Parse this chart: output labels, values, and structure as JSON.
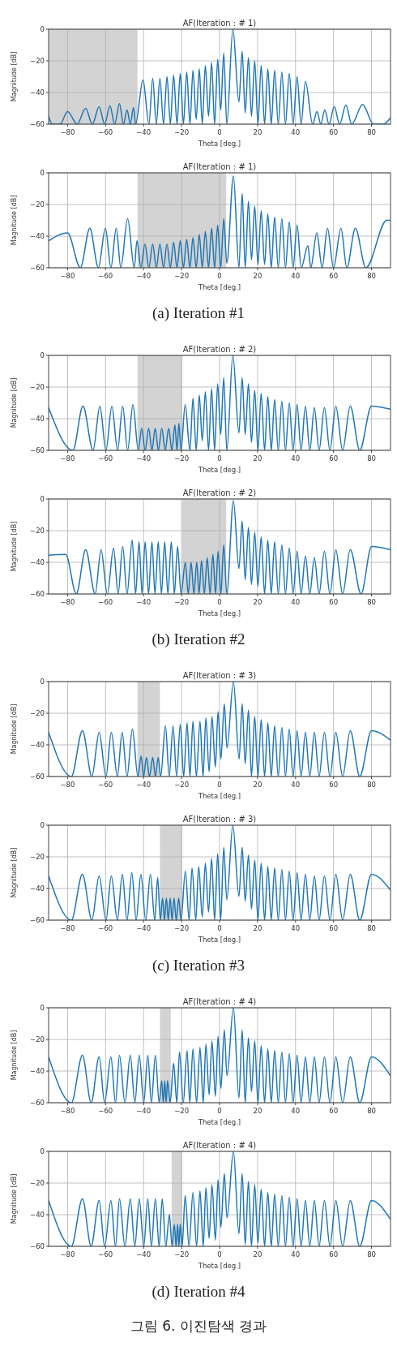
{
  "chart_data": [
    {
      "type": "line",
      "title": "AF(Iteration : # 1)",
      "xlabel": "Theta [deg.]",
      "ylabel": "Magnitude [dB]",
      "xlim": [
        -90,
        90
      ],
      "ylim": [
        -60,
        0
      ],
      "xticks": [
        -80,
        -60,
        -40,
        -20,
        0,
        20,
        40,
        60,
        80
      ],
      "yticks": [
        -60,
        -40,
        -20,
        0
      ],
      "grid": true,
      "bands": [
        {
          "axis": "x",
          "from": -90,
          "to": -43.2,
          "color": "#d3d3d3"
        }
      ],
      "series": [
        {
          "color": "#1f77b4",
          "x": [
            -90,
            -88,
            -84,
            -80,
            -75,
            -70.5,
            -67,
            -63.4,
            -60.5,
            -57.7,
            -55.2,
            -52.7,
            -50.6,
            -48.7,
            -47,
            -45.3,
            -44.2,
            -40.3,
            -37.2,
            -35.2,
            -33.3,
            -31.4,
            -29.5,
            -27.7,
            -25.9,
            -24.2,
            -22.4,
            -20.7,
            -19,
            -17.3,
            -15.6,
            -14,
            -12.3,
            -10.7,
            -9.1,
            -7.5,
            -5.8,
            -4.2,
            -2.6,
            -1,
            0.6,
            2.2,
            3.8,
            7,
            10.2,
            11.9,
            13.5,
            15.2,
            16.8,
            18.5,
            20.2,
            21.9,
            23.7,
            25.4,
            27.2,
            29,
            30.9,
            32.8,
            34.7,
            36.7,
            38.7,
            40.8,
            42.9,
            45.2,
            49,
            51.3,
            53.3,
            55.4,
            57.6,
            60.4,
            63.2,
            66.5,
            69.6,
            75.3,
            81,
            86.2,
            90
          ],
          "values": [
            -55,
            -60,
            -60,
            -52,
            -60,
            -50,
            -60,
            -49,
            -60,
            -48.5,
            -60,
            -47,
            -60,
            -51,
            -60,
            -49.5,
            -60,
            -32,
            -60,
            -31,
            -60,
            -31,
            -60,
            -30,
            -60,
            -29,
            -60,
            -28,
            -60,
            -27,
            -60,
            -26,
            -57,
            -25,
            -60,
            -23,
            -55,
            -21,
            -60,
            -19,
            -51,
            -15,
            -60,
            0,
            -46,
            -14,
            -53,
            -18,
            -55,
            -20,
            -60,
            -23,
            -60,
            -25,
            -60,
            -26,
            -60,
            -27,
            -60,
            -28,
            -60,
            -30,
            -60,
            -33,
            -60,
            -52,
            -60,
            -51,
            -60,
            -49,
            -60,
            -48,
            -60,
            -47.5,
            -60,
            -60,
            -56
          ]
        }
      ]
    },
    {
      "type": "line",
      "title": "AF(Iteration : # 1)",
      "xlabel": "Theta [deg.]",
      "ylabel": "Magnitude [dB]",
      "xlim": [
        -90,
        90
      ],
      "ylim": [
        -60,
        0
      ],
      "xticks": [
        -80,
        -60,
        -40,
        -20,
        0,
        20,
        40,
        60,
        80
      ],
      "yticks": [
        -60,
        -40,
        -20,
        0
      ],
      "grid": true,
      "bands": [
        {
          "axis": "x",
          "from": -43.2,
          "to": 3.5,
          "color": "#d3d3d3"
        }
      ],
      "annotations": [
        "(a) Iteration #1"
      ],
      "series": [
        {
          "color": "#1f77b4",
          "x": [
            -90,
            -80,
            -73.3,
            -68.3,
            -63.8,
            -60.1,
            -57.2,
            -54.4,
            -52,
            -48.4,
            -44.9,
            -43.5,
            -41.4,
            -39.3,
            -37.2,
            -35.2,
            -33.3,
            -31.4,
            -29.5,
            -27.7,
            -25.9,
            -24.2,
            -22.4,
            -20.7,
            -19,
            -17.3,
            -15.6,
            -14,
            -12.3,
            -10.7,
            -9.1,
            -7.5,
            -5.8,
            -4.2,
            -2.6,
            -1,
            0.6,
            2.2,
            3.8,
            7.3,
            10.2,
            11.9,
            13.5,
            15.2,
            16.8,
            18.5,
            20.2,
            21.9,
            23.7,
            25.4,
            27.2,
            29,
            30.9,
            32.8,
            34.7,
            36.7,
            38.7,
            40.8,
            43,
            46.5,
            48,
            51.2,
            54,
            56.8,
            60,
            63.9,
            67,
            71.5,
            77,
            88,
            90
          ],
          "values": [
            -43,
            -38,
            -60,
            -35,
            -60,
            -35,
            -60,
            -35,
            -60,
            -29,
            -60,
            -43,
            -60,
            -45,
            -60,
            -45,
            -60,
            -45,
            -60,
            -45,
            -60,
            -44,
            -60,
            -43,
            -60,
            -42,
            -60,
            -41,
            -60,
            -39,
            -60,
            -37,
            -60,
            -35,
            -60,
            -33,
            -60,
            -29,
            -57,
            -2,
            -60,
            -13,
            -60,
            -18,
            -55,
            -21,
            -58,
            -24,
            -58,
            -26,
            -60,
            -28,
            -60,
            -29,
            -60,
            -31,
            -60,
            -33,
            -60,
            -46,
            -60,
            -38,
            -60,
            -35,
            -60,
            -35,
            -60,
            -35,
            -60,
            -30,
            -30
          ]
        }
      ]
    },
    {
      "type": "line",
      "title": "AF(Iteration : # 2)",
      "xlabel": "Theta [deg.]",
      "ylabel": "Magnitude [dB]",
      "xlim": [
        -90,
        90
      ],
      "ylim": [
        -60,
        0
      ],
      "xticks": [
        -80,
        -60,
        -40,
        -20,
        0,
        20,
        40,
        60,
        80
      ],
      "yticks": [
        -60,
        -40,
        -20,
        0
      ],
      "grid": true,
      "bands": [
        {
          "axis": "x",
          "from": -43.2,
          "to": -19.7,
          "color": "#d3d3d3"
        }
      ],
      "series": [
        {
          "color": "#1f77b4",
          "x": [
            -90,
            -77.2,
            -71.9,
            -66.6,
            -63,
            -59.8,
            -56.7,
            -53.7,
            -51,
            -48.4,
            -45.6,
            -42.8,
            -41,
            -39.2,
            -37.3,
            -35.6,
            -33.9,
            -32.2,
            -30.4,
            -28.6,
            -26.8,
            -25.1,
            -23.5,
            -22.4,
            -21.4,
            -20.3,
            -18.1,
            -15.6,
            -14,
            -12.3,
            -10.7,
            -9.1,
            -7.5,
            -5.8,
            -4.2,
            -2.6,
            -1,
            0.6,
            2.2,
            3.8,
            7,
            10.2,
            11.9,
            13.5,
            15.2,
            16.8,
            18.5,
            20.2,
            21.9,
            23.7,
            25.4,
            27.2,
            29,
            30.9,
            32.8,
            34.7,
            36.7,
            38.7,
            40.8,
            42.9,
            45.2,
            47.5,
            49.9,
            52.4,
            55.2,
            58.1,
            61.2,
            64.8,
            68.8,
            73.8,
            80,
            90
          ],
          "values": [
            -33,
            -60,
            -32,
            -60,
            -32,
            -60,
            -32,
            -60,
            -32,
            -60,
            -31,
            -60,
            -46,
            -60,
            -46,
            -60,
            -46,
            -60,
            -46,
            -60,
            -46,
            -60,
            -44,
            -60,
            -43,
            -60,
            -31,
            -60,
            -27,
            -60,
            -25,
            -54,
            -23,
            -60,
            -21,
            -60,
            -18,
            -50,
            -14,
            -60,
            0,
            -49,
            -14,
            -50,
            -18,
            -55,
            -22,
            -60,
            -24,
            -60,
            -26,
            -60,
            -28,
            -60,
            -29,
            -60,
            -30,
            -60,
            -31,
            -60,
            -32,
            -60,
            -33,
            -60,
            -33,
            -60,
            -32,
            -60,
            -32,
            -60,
            -32,
            -34
          ]
        }
      ]
    },
    {
      "type": "line",
      "title": "AF(Iteration : # 2)",
      "xlabel": "Theta [deg.]",
      "ylabel": "Magnitude [dB]",
      "xlim": [
        -90,
        90
      ],
      "ylim": [
        -60,
        0
      ],
      "xticks": [
        -80,
        -60,
        -40,
        -20,
        0,
        20,
        40,
        60,
        80
      ],
      "yticks": [
        -60,
        -40,
        -20,
        0
      ],
      "grid": true,
      "bands": [
        {
          "axis": "x",
          "from": -19.7,
          "to": 3.5,
          "color": "#d3d3d3"
        }
      ],
      "annotations": [
        "(b) Iteration #2"
      ],
      "series": [
        {
          "color": "#1f77b4",
          "x": [
            -90,
            -81,
            -75.4,
            -70.5,
            -65.5,
            -62.4,
            -59.1,
            -55.8,
            -53.4,
            -51,
            -48.7,
            -46,
            -44.2,
            -42.4,
            -40.8,
            -39.2,
            -37.4,
            -35.6,
            -34,
            -32.3,
            -30.6,
            -28.9,
            -27.2,
            -25.4,
            -23.8,
            -22.1,
            -20.3,
            -18,
            -16.5,
            -15,
            -13.5,
            -12,
            -10.8,
            -9.5,
            -8,
            -6.5,
            -5,
            -3.5,
            -2.1,
            -0.8,
            0.7,
            2.2,
            3.8,
            7.3,
            10.2,
            11.9,
            13.5,
            15.2,
            16.8,
            18.5,
            20.2,
            21.9,
            23.7,
            25.4,
            27.2,
            29,
            30.9,
            32.8,
            34.7,
            36.7,
            38.7,
            40.8,
            42.9,
            45.2,
            47.5,
            49.9,
            52.4,
            55.2,
            58.1,
            61.2,
            64.8,
            68.8,
            74.5,
            80,
            90
          ],
          "values": [
            -35.5,
            -35,
            -60,
            -32,
            -60,
            -32,
            -60,
            -31,
            -60,
            -30,
            -60,
            -26,
            -60,
            -27,
            -60,
            -27,
            -60,
            -27,
            -60,
            -27,
            -60,
            -27,
            -60,
            -27,
            -60,
            -30,
            -60,
            -40,
            -60,
            -40,
            -60,
            -40,
            -60,
            -39,
            -60,
            -37,
            -60,
            -35,
            -60,
            -33,
            -60,
            -29,
            -60,
            -1,
            -44,
            -14,
            -51,
            -18,
            -54,
            -21,
            -55,
            -24,
            -60,
            -26,
            -60,
            -27,
            -60,
            -29,
            -60,
            -31,
            -60,
            -33,
            -60,
            -36,
            -60,
            -37,
            -60,
            -33,
            -60,
            -32,
            -60,
            -32,
            -60,
            -30,
            -32
          ]
        }
      ]
    },
    {
      "type": "line",
      "title": "AF(Iteration : # 3)",
      "xlabel": "Theta [deg.]",
      "ylabel": "Magnitude [dB]",
      "xlim": [
        -90,
        90
      ],
      "ylim": [
        -60,
        0
      ],
      "xticks": [
        -80,
        -60,
        -40,
        -20,
        0,
        20,
        40,
        60,
        80
      ],
      "yticks": [
        -60,
        -40,
        -20,
        0
      ],
      "grid": true,
      "bands": [
        {
          "axis": "x",
          "from": -43.2,
          "to": -31.4,
          "color": "#d3d3d3"
        }
      ],
      "series": [
        {
          "color": "#1f77b4",
          "x": [
            -90,
            -78,
            -72.2,
            -67.2,
            -63.4,
            -59.8,
            -57,
            -53.8,
            -51.3,
            -48.7,
            -45.9,
            -43,
            -41.3,
            -40,
            -38.5,
            -36.9,
            -35.2,
            -33.8,
            -32.3,
            -31,
            -28.5,
            -26.5,
            -24.5,
            -22.6,
            -20.7,
            -18.9,
            -17.1,
            -15.6,
            -14,
            -12.2,
            -10.3,
            -8.7,
            -7.2,
            -5.5,
            -4,
            -2.2,
            -0.8,
            0.7,
            2.5,
            3.9,
            7.3,
            10.3,
            11.9,
            13.5,
            15.2,
            16.8,
            18.5,
            20.2,
            21.9,
            23.7,
            25.4,
            27.2,
            29,
            30.9,
            32.8,
            34.7,
            36.7,
            38.7,
            40.8,
            42.9,
            45.2,
            47.5,
            49.9,
            52.4,
            55.2,
            58.1,
            61.2,
            64.8,
            68.8,
            73.8,
            80,
            90
          ],
          "values": [
            -32,
            -60,
            -31,
            -60,
            -32,
            -60,
            -32,
            -60,
            -32,
            -60,
            -30,
            -60,
            -47,
            -60,
            -48,
            -60,
            -48,
            -60,
            -48,
            -60,
            -28,
            -60,
            -28,
            -60,
            -27,
            -60,
            -26,
            -60,
            -25,
            -60,
            -25,
            -60,
            -23,
            -57,
            -22,
            -54,
            -19,
            -49,
            -14,
            -42,
            0,
            -49,
            -14,
            -52,
            -18,
            -60,
            -22,
            -60,
            -24,
            -60,
            -26,
            -60,
            -28,
            -60,
            -29,
            -60,
            -30,
            -60,
            -31,
            -60,
            -32,
            -60,
            -32,
            -60,
            -32,
            -60,
            -32,
            -60,
            -31,
            -60,
            -31,
            -37
          ]
        }
      ]
    },
    {
      "type": "line",
      "title": "AF(Iteration : # 3)",
      "xlabel": "Theta [deg.]",
      "ylabel": "Magnitude [dB]",
      "xlim": [
        -90,
        90
      ],
      "ylim": [
        -60,
        0
      ],
      "xticks": [
        -80,
        -60,
        -40,
        -20,
        0,
        20,
        40,
        60,
        80
      ],
      "yticks": [
        -60,
        -40,
        -20,
        0
      ],
      "grid": true,
      "bands": [
        {
          "axis": "x",
          "from": -31.4,
          "to": -19.7,
          "color": "#d3d3d3"
        }
      ],
      "annotations": [
        "(c) Iteration #3"
      ],
      "series": [
        {
          "color": "#1f77b4",
          "x": [
            -90,
            -78,
            -72.2,
            -67.2,
            -63.4,
            -59.8,
            -57,
            -53.8,
            -51.2,
            -48.7,
            -46.2,
            -43.9,
            -41.4,
            -38.9,
            -36.4,
            -34.1,
            -32.6,
            -31.2,
            -30,
            -29,
            -28,
            -27,
            -26,
            -25,
            -24,
            -22.8,
            -21.5,
            -20.3,
            -18,
            -16,
            -14.5,
            -12.5,
            -11,
            -9.1,
            -7.5,
            -5.8,
            -4.2,
            -2.6,
            -1,
            0.6,
            2.2,
            3.8,
            7,
            10.2,
            11.9,
            13.5,
            15.2,
            16.8,
            18.5,
            20.2,
            21.9,
            23.7,
            25.4,
            27.2,
            29,
            30.9,
            32.8,
            34.7,
            36.7,
            38.7,
            40.8,
            42.9,
            45.2,
            47.5,
            49.9,
            52.4,
            55.2,
            58.1,
            61.2,
            64.8,
            68.8,
            73.8,
            80,
            90
          ],
          "values": [
            -32,
            -60,
            -31,
            -60,
            -32,
            -60,
            -32,
            -60,
            -31,
            -60,
            -30,
            -60,
            -31,
            -60,
            -31,
            -60,
            -33,
            -60,
            -46,
            -60,
            -46,
            -60,
            -46,
            -60,
            -46,
            -60,
            -46,
            -60,
            -29,
            -60,
            -27,
            -60,
            -26,
            -58,
            -24,
            -55,
            -21,
            -60,
            -18,
            -60,
            -14,
            -47,
            0,
            -45,
            -14,
            -48,
            -19,
            -53,
            -22,
            -60,
            -24,
            -60,
            -26,
            -60,
            -27,
            -60,
            -28,
            -60,
            -29,
            -60,
            -30,
            -60,
            -31,
            -60,
            -32,
            -60,
            -32,
            -60,
            -31,
            -60,
            -31,
            -60,
            -31,
            -41
          ]
        }
      ]
    },
    {
      "type": "line",
      "title": "AF(Iteration : # 4)",
      "xlabel": "Theta [deg.]",
      "ylabel": "Magnitude [dB]",
      "xlim": [
        -90,
        90
      ],
      "ylim": [
        -60,
        0
      ],
      "xticks": [
        -80,
        -60,
        -40,
        -20,
        0,
        20,
        40,
        60,
        80
      ],
      "yticks": [
        -60,
        -40,
        -20,
        0
      ],
      "grid": true,
      "bands": [
        {
          "axis": "x",
          "from": -31.4,
          "to": -25.7,
          "color": "#d3d3d3"
        }
      ],
      "series": [
        {
          "color": "#1f77b4",
          "x": [
            -90,
            -78,
            -72.2,
            -67.6,
            -63.4,
            -60.5,
            -57.2,
            -54.8,
            -52.7,
            -49.8,
            -47,
            -44.6,
            -42.3,
            -39.9,
            -37.8,
            -35.9,
            -33.8,
            -31.8,
            -30.5,
            -29.6,
            -28.9,
            -28.1,
            -27.4,
            -26,
            -24.2,
            -22.5,
            -21.1,
            -19.1,
            -17.1,
            -15.7,
            -14,
            -12.1,
            -10.3,
            -8.6,
            -7.2,
            -5.5,
            -4,
            -2.2,
            -0.8,
            0.7,
            2.5,
            3.9,
            7.3,
            10.2,
            11.9,
            13.5,
            15.2,
            16.8,
            18.5,
            20.2,
            21.9,
            23.7,
            25.4,
            27.2,
            29,
            30.9,
            32.8,
            34.7,
            36.7,
            38.7,
            40.8,
            42.9,
            45.2,
            47.5,
            49.9,
            52.4,
            55.2,
            58.1,
            61.2,
            64.8,
            68.8,
            73.8,
            80,
            90
          ],
          "values": [
            -31,
            -60,
            -30,
            -60,
            -31,
            -60,
            -31,
            -60,
            -30,
            -60,
            -30,
            -60,
            -30,
            -60,
            -30,
            -60,
            -30,
            -60,
            -46,
            -60,
            -46,
            -60,
            -46,
            -60,
            -35,
            -60,
            -28,
            -60,
            -27,
            -60,
            -26,
            -60,
            -25,
            -60,
            -23,
            -55,
            -21,
            -56,
            -18,
            -51,
            -14,
            -43,
            0,
            -57,
            -14,
            -60,
            -19,
            -53,
            -21,
            -60,
            -24,
            -60,
            -26,
            -60,
            -27,
            -60,
            -28,
            -60,
            -29,
            -60,
            -30,
            -60,
            -31,
            -60,
            -31,
            -60,
            -31,
            -60,
            -31,
            -60,
            -31,
            -60,
            -31,
            -43
          ]
        }
      ]
    },
    {
      "type": "line",
      "title": "AF(Iteration : # 4)",
      "xlabel": "Theta [deg.]",
      "ylabel": "Magnitude [dB]",
      "xlim": [
        -90,
        90
      ],
      "ylim": [
        -60,
        0
      ],
      "xticks": [
        -80,
        -60,
        -40,
        -20,
        0,
        20,
        40,
        60,
        80
      ],
      "yticks": [
        -60,
        -40,
        -20,
        0
      ],
      "grid": true,
      "bands": [
        {
          "axis": "x",
          "from": -25.2,
          "to": -19.7,
          "color": "#d3d3d3"
        }
      ],
      "annotations": [
        "(d) Iteration #4",
        "그림 6. 이진탐색 경과"
      ],
      "series": [
        {
          "color": "#1f77b4",
          "x": [
            -90,
            -78,
            -72.2,
            -67.6,
            -63.4,
            -60.5,
            -57.2,
            -54.8,
            -52.7,
            -49.8,
            -47,
            -44.6,
            -42.3,
            -39.9,
            -37.8,
            -35.9,
            -33.8,
            -31.8,
            -30.2,
            -28.3,
            -26.4,
            -25,
            -23.8,
            -22.9,
            -22.1,
            -21.4,
            -20.7,
            -19.7,
            -18.1,
            -16.1,
            -14,
            -12.1,
            -10.3,
            -8.6,
            -7.2,
            -5.5,
            -4,
            -2.2,
            -0.8,
            0.7,
            2.5,
            3.9,
            7.3,
            10.2,
            11.9,
            13.5,
            15.2,
            16.8,
            18.5,
            20.2,
            21.9,
            23.7,
            25.4,
            27.2,
            29,
            30.9,
            32.8,
            34.7,
            36.7,
            38.7,
            40.8,
            42.9,
            45.2,
            47.5,
            49.9,
            52.4,
            55.2,
            58.1,
            61.2,
            64.8,
            68.8,
            73.8,
            80,
            90
          ],
          "values": [
            -31,
            -60,
            -30,
            -60,
            -31,
            -60,
            -31,
            -60,
            -30,
            -60,
            -30,
            -60,
            -30,
            -60,
            -30,
            -60,
            -30,
            -60,
            -30,
            -60,
            -40,
            -60,
            -46,
            -60,
            -46,
            -60,
            -46,
            -60,
            -28,
            -60,
            -26,
            -60,
            -25,
            -60,
            -23,
            -55,
            -21,
            -56,
            -18,
            -48,
            -14,
            -42,
            0,
            -52,
            -14,
            -59,
            -19,
            -60,
            -21,
            -58,
            -24,
            -60,
            -26,
            -60,
            -27,
            -60,
            -28,
            -60,
            -29,
            -60,
            -30,
            -60,
            -31,
            -60,
            -31,
            -60,
            -31,
            -60,
            -31,
            -60,
            -31,
            -60,
            -31,
            -43
          ]
        }
      ]
    }
  ]
}
